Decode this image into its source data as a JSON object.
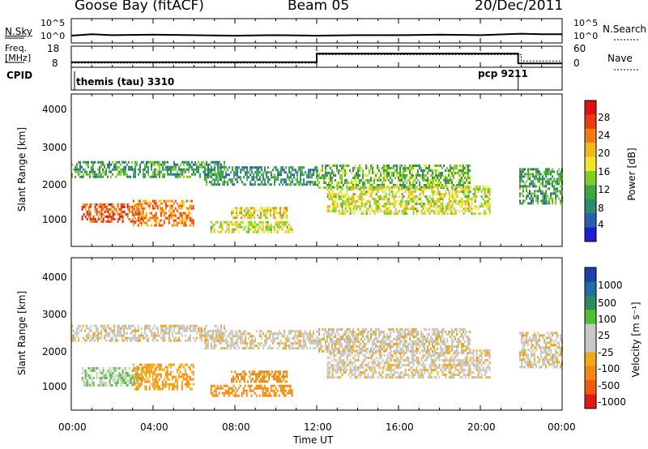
{
  "header": {
    "station": "Goose Bay (fitACF)",
    "beam": "Beam 05",
    "date": "20/Dec/2011"
  },
  "noise_panel": {
    "left_label": "N.Sky",
    "left_ticks": [
      "10^5",
      "10^0"
    ],
    "right_ticks": [
      "10^5",
      "10^0"
    ],
    "right_label": "N.Search"
  },
  "freq_panel": {
    "left_label_line1": "Freq.",
    "left_label_line2": "[MHz]",
    "left_ticks": [
      "18",
      "8"
    ],
    "right_ticks": [
      "60",
      "0"
    ],
    "right_label": "Nave"
  },
  "cpid_panel": {
    "label": "CPID",
    "programs": [
      {
        "name": "themis (tau) 3310",
        "start_hour": 0.0
      },
      {
        "name": "pcp 9211",
        "start_hour": 21.85
      }
    ]
  },
  "x_axis": {
    "title": "Time UT",
    "tick_labels": [
      "00:00",
      "04:00",
      "08:00",
      "12:00",
      "16:00",
      "20:00",
      "00:00"
    ],
    "range_hours": [
      0,
      24
    ]
  },
  "power_panel": {
    "y_label": "Slant Range [km]",
    "y_ticks": [
      "4000",
      "3000",
      "2000",
      "1000"
    ],
    "colorbar_label": "Power [dB]",
    "colorbar_ticks": [
      "28",
      "24",
      "20",
      "16",
      "12",
      "8",
      "4"
    ],
    "colors": [
      "#1e1ed0",
      "#2a5fb0",
      "#2e8a6a",
      "#3aa840",
      "#86cc28",
      "#f0e628",
      "#f2b820",
      "#f07d16",
      "#ea3c10",
      "#e01010"
    ]
  },
  "velocity_panel": {
    "y_label": "Slant Range [km]",
    "y_ticks": [
      "4000",
      "3000",
      "2000",
      "1000"
    ],
    "colorbar_label": "Velocity [m s⁻¹]",
    "colorbar_ticks": [
      "1000",
      "500",
      "100",
      "25",
      "-25",
      "-100",
      "-500",
      "-1000"
    ],
    "colors": [
      "#1f3ea8",
      "#1e6ea0",
      "#2c8a5c",
      "#50c030",
      "#c8c8c4",
      "#c8c8c4",
      "#f0a818",
      "#f08a10",
      "#ee5a10",
      "#e01818"
    ]
  },
  "chart_data": [
    {
      "type": "line",
      "title": "N.Sky / N.Search",
      "x": [
        0,
        1,
        2,
        4,
        6,
        8,
        10,
        12,
        14,
        16,
        18,
        20,
        22,
        23,
        24
      ],
      "series": [
        {
          "name": "N.Sky",
          "values": [
            1.5,
            1.8,
            1.6,
            1.7,
            1.6,
            1.5,
            1.6,
            1.5,
            1.6,
            1.6,
            1.7,
            1.6,
            1.9,
            1.8,
            1.8
          ]
        }
      ],
      "ylim": [
        0,
        5
      ]
    },
    {
      "type": "line",
      "title": "Freq. / Nave",
      "series": [
        {
          "name": "Freq. [MHz]",
          "x": [
            0,
            12.0,
            12.0,
            21.85,
            21.85,
            24
          ],
          "values": [
            10.4,
            10.4,
            14.5,
            14.5,
            9.8,
            9.8
          ]
        },
        {
          "name": "Nave",
          "x": [
            0,
            12.0,
            12.0,
            22.0,
            22.0,
            24
          ],
          "values": [
            10,
            10,
            14,
            14,
            11,
            11
          ]
        }
      ],
      "ylim": [
        8,
        18
      ]
    },
    {
      "type": "heatmap",
      "title": "Power [dB]",
      "x_range_hours": [
        0,
        24
      ],
      "ylim": [
        180,
        4500
      ],
      "echo_regions": [
        {
          "t0": 0.0,
          "t1": 7.5,
          "r0": 2150,
          "r1": 2600,
          "power_db": 12
        },
        {
          "t0": 6.5,
          "t1": 12.0,
          "r0": 1900,
          "r1": 2450,
          "power_db": 10
        },
        {
          "t0": 12.0,
          "t1": 19.5,
          "r0": 1850,
          "r1": 2500,
          "power_db": 14
        },
        {
          "t0": 0.5,
          "t1": 3.5,
          "r0": 900,
          "r1": 1400,
          "power_db": 26
        },
        {
          "t0": 3.0,
          "t1": 6.0,
          "r0": 800,
          "r1": 1500,
          "power_db": 24
        },
        {
          "t0": 6.8,
          "t1": 10.8,
          "r0": 580,
          "r1": 900,
          "power_db": 18
        },
        {
          "t0": 7.8,
          "t1": 10.5,
          "r0": 1000,
          "r1": 1300,
          "power_db": 20
        },
        {
          "t0": 12.5,
          "t1": 20.5,
          "r0": 1100,
          "r1": 1900,
          "power_db": 18
        },
        {
          "t0": 21.9,
          "t1": 24.0,
          "r0": 1400,
          "r1": 2400,
          "power_db": 12
        }
      ]
    },
    {
      "type": "heatmap",
      "title": "Velocity [m s-1]",
      "x_range_hours": [
        0,
        24
      ],
      "ylim": [
        180,
        4500
      ],
      "echo_regions": [
        {
          "t0": 0.0,
          "t1": 7.5,
          "r0": 2150,
          "r1": 2600,
          "velocity": 0
        },
        {
          "t0": 6.5,
          "t1": 12.0,
          "r0": 1900,
          "r1": 2450,
          "velocity": 0
        },
        {
          "t0": 12.0,
          "t1": 19.5,
          "r0": 1850,
          "r1": 2500,
          "velocity": 0
        },
        {
          "t0": 0.5,
          "t1": 3.5,
          "r0": 900,
          "r1": 1400,
          "velocity": 90
        },
        {
          "t0": 3.0,
          "t1": 6.0,
          "r0": 800,
          "r1": 1500,
          "velocity": -80
        },
        {
          "t0": 6.8,
          "t1": 10.8,
          "r0": 580,
          "r1": 900,
          "velocity": -200
        },
        {
          "t0": 7.8,
          "t1": 10.5,
          "r0": 1000,
          "r1": 1300,
          "velocity": -150
        },
        {
          "t0": 12.5,
          "t1": 20.5,
          "r0": 1100,
          "r1": 1900,
          "velocity": 0
        },
        {
          "t0": 21.9,
          "t1": 24.0,
          "r0": 1400,
          "r1": 2400,
          "velocity": 0
        }
      ]
    }
  ]
}
